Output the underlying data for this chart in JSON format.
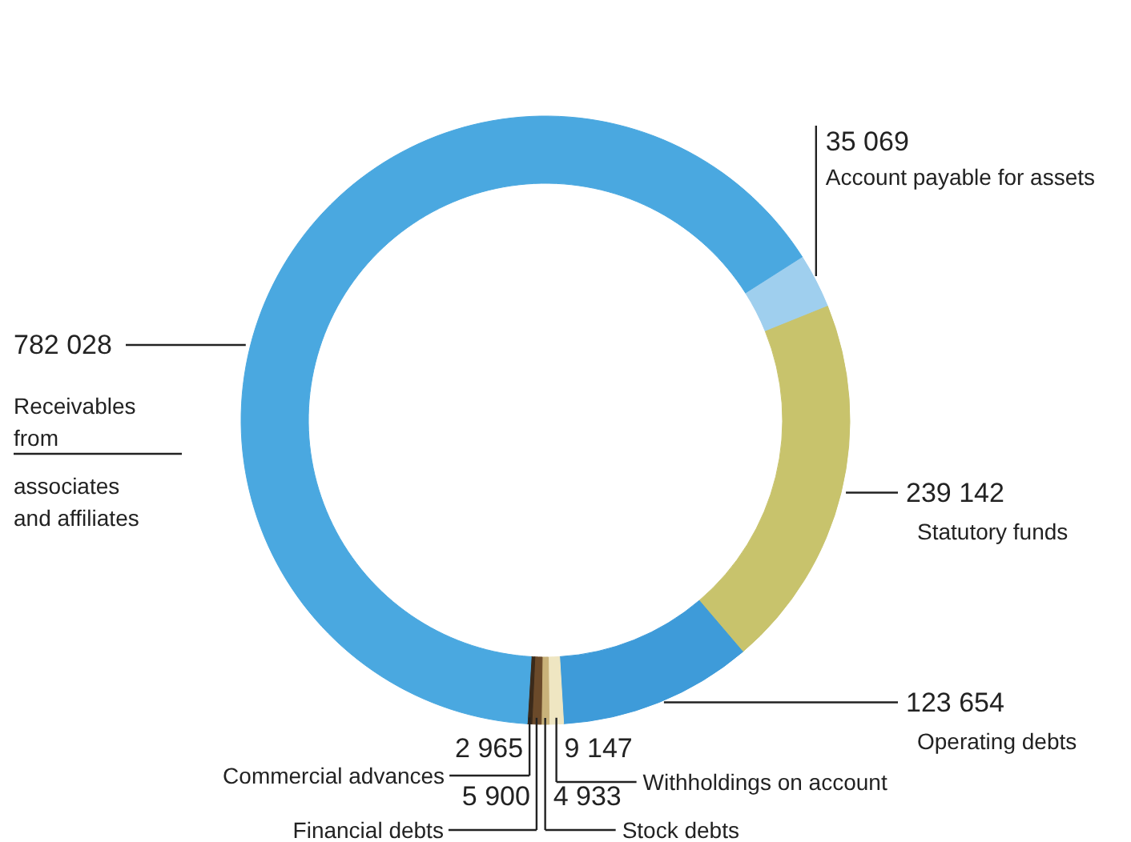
{
  "chart_data": {
    "type": "donut",
    "categories": [
      "Account payable for assets",
      "Statutory funds",
      "Operating debts",
      "Withholdings on account",
      "Stock debts",
      "Financial debts",
      "Commercial advances",
      "Receivables from associates and affiliates"
    ],
    "values": [
      35069,
      239142,
      123654,
      9147,
      4933,
      5900,
      2965,
      782028
    ],
    "value_labels": [
      "35 069",
      "239 142",
      "123 654",
      "9 147",
      "4 933",
      "5 900",
      "2 965",
      "782 028"
    ],
    "colors": [
      "#9fcfee",
      "#c8c36c",
      "#3e9bd9",
      "#efe6c2",
      "#c9b27a",
      "#6b4a2a",
      "#3b2a1a",
      "#4aa8e0"
    ]
  }
}
